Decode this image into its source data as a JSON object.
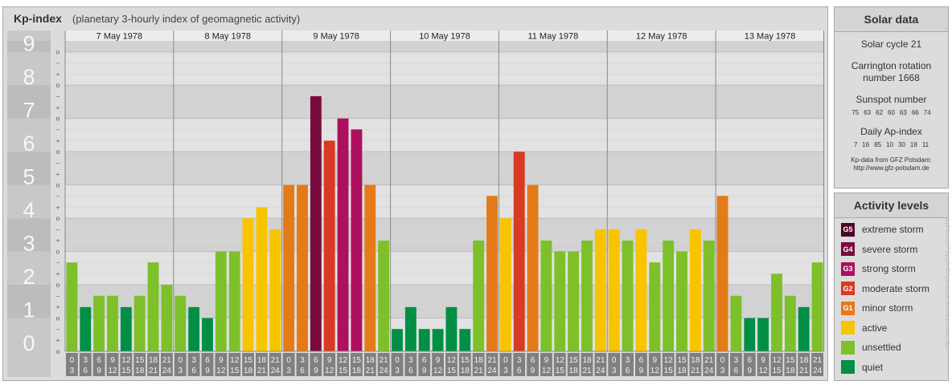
{
  "header": {
    "title": "Kp-index",
    "subtitle": "(planetary 3-hourly index of geomagnetic activity)"
  },
  "colors": {
    "quiet": "#008f45",
    "unsettled": "#7dc02a",
    "active": "#f8c400",
    "minor storm": "#e57a18",
    "moderate storm": "#d83a22",
    "strong storm": "#ae0f5e",
    "severe storm": "#7a0a3c",
    "extreme storm": "#4e0626"
  },
  "chart_data": {
    "type": "bar",
    "ylim": [
      0,
      9
    ],
    "y_ticks": [
      "0",
      "1",
      "2",
      "3",
      "4",
      "5",
      "6",
      "7",
      "8",
      "9"
    ],
    "sub_ticks": [
      "o",
      "+",
      "−"
    ],
    "days": [
      "7 May 1978",
      "8 May 1978",
      "9 May 1978",
      "10 May 1978",
      "11 May 1978",
      "12 May 1978",
      "13 May 1978"
    ],
    "interval_labels": [
      [
        "0",
        "3"
      ],
      [
        "3",
        "6"
      ],
      [
        "6",
        "9"
      ],
      [
        "9",
        "12"
      ],
      [
        "12",
        "15"
      ],
      [
        "15",
        "18"
      ],
      [
        "18",
        "21"
      ],
      [
        "21",
        "24"
      ]
    ],
    "values": [
      [
        2.67,
        1.33,
        1.67,
        1.67,
        1.33,
        1.67,
        2.67,
        2.0
      ],
      [
        1.67,
        1.33,
        1.0,
        3.0,
        3.0,
        4.0,
        4.33,
        3.67
      ],
      [
        5.0,
        5.0,
        7.67,
        6.33,
        7.0,
        6.67,
        5.0,
        3.33
      ],
      [
        0.67,
        1.33,
        0.67,
        0.67,
        1.33,
        0.67,
        3.33,
        4.67
      ],
      [
        4.0,
        6.0,
        5.0,
        3.33,
        3.0,
        3.0,
        3.33,
        3.67
      ],
      [
        3.67,
        3.33,
        3.67,
        2.67,
        3.33,
        3.0,
        3.67,
        3.33
      ],
      [
        4.67,
        1.67,
        1.0,
        1.0,
        2.33,
        1.67,
        1.33,
        2.67
      ]
    ]
  },
  "solar": {
    "header": "Solar data",
    "cycle": "Solar cycle 21",
    "carrington_line1": "Carrington rotation",
    "carrington_line2": "number 1668",
    "sunspot_label": "Sunspot number",
    "sunspot_values": [
      "75",
      "63",
      "62",
      "60",
      "63",
      "66",
      "74"
    ],
    "ap_label": "Daily Ap-index",
    "ap_values": [
      "7",
      "16",
      "85",
      "10",
      "30",
      "18",
      "11"
    ],
    "credit_line1": "Kp-data from GFZ Potsdam:",
    "credit_line2": "http://www.gfz-potsdam.de"
  },
  "activity": {
    "header": "Activity levels",
    "levels": [
      {
        "badge": "G5",
        "label": "extreme storm",
        "color": "#4e0626"
      },
      {
        "badge": "G4",
        "label": "severe storm",
        "color": "#7a0a3c"
      },
      {
        "badge": "G3",
        "label": "strong storm",
        "color": "#ae0f5e"
      },
      {
        "badge": "G2",
        "label": "moderate storm",
        "color": "#d83a22"
      },
      {
        "badge": "G1",
        "label": "minor storm",
        "color": "#e57a18"
      },
      {
        "badge": "",
        "label": "active",
        "color": "#f8c400"
      },
      {
        "badge": "",
        "label": "unsettled",
        "color": "#7dc02a"
      },
      {
        "badge": "",
        "label": "quiet",
        "color": "#008f45"
      }
    ]
  },
  "watermark": "http://www.theusner.eu/terra/kpgraph/kp_archive.php"
}
